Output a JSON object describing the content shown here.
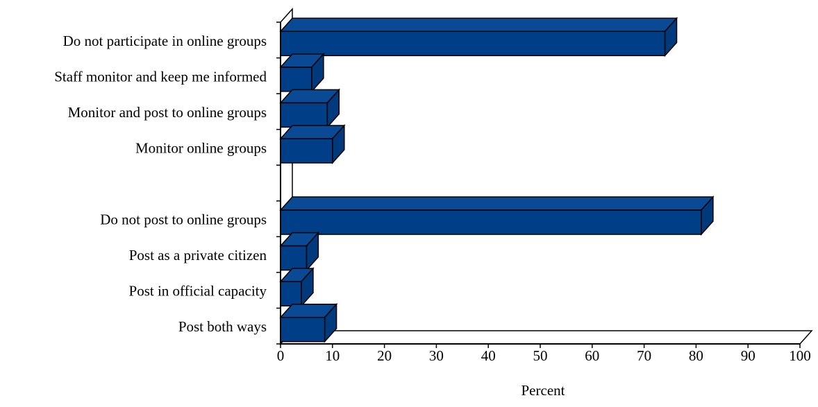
{
  "chart_data": {
    "type": "bar",
    "orientation": "horizontal",
    "three_d": true,
    "title": "",
    "xlabel": "Percent",
    "ylabel": "",
    "xlim": [
      0,
      100
    ],
    "x_ticks": [
      "0",
      "10",
      "20",
      "30",
      "40",
      "50",
      "60",
      "70",
      "80",
      "90",
      "100"
    ],
    "grid": false,
    "legend": "none",
    "bar_color": "#003f87",
    "categories": [
      "Do not participate in online groups",
      "Staff monitor and keep me informed",
      "Monitor and post to online groups",
      "Monitor online groups",
      "",
      "Do not post to online groups",
      "Post as a private citizen",
      "Post in official capacity",
      "Post both ways"
    ],
    "values": [
      74,
      6,
      9,
      10,
      null,
      81,
      5,
      4,
      8.5
    ]
  }
}
